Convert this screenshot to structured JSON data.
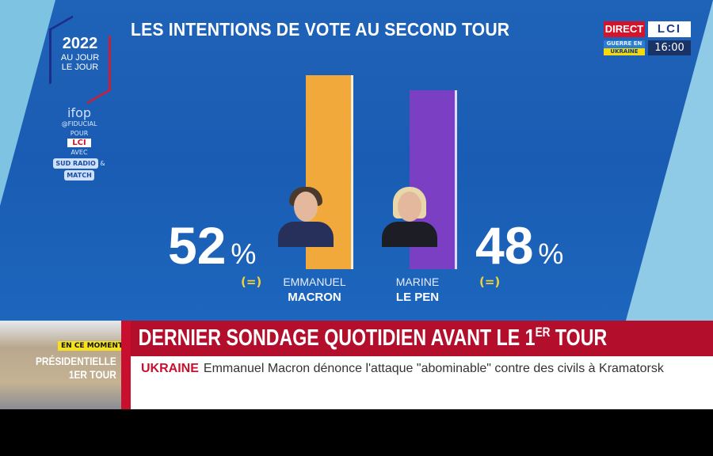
{
  "header": {
    "title": "LES INTENTIONS DE VOTE AU SECOND TOUR"
  },
  "logo": {
    "year": "2022",
    "line1": "AU JOUR",
    "line2": "LE JOUR"
  },
  "sponsors": {
    "ifop": "ifop",
    "fiducial": "@FIDUCIAL",
    "pour": "POUR",
    "lci": "LCI",
    "avec": "AVEC",
    "sud": "SUD RADIO",
    "match": "MATCH"
  },
  "live": {
    "direct": "DIRECT",
    "channel": "LCI",
    "tag_line1": "GUERRE EN",
    "tag_line2": "UKRAINE",
    "time": "16:00"
  },
  "chart_data": {
    "type": "bar",
    "title": "LES INTENTIONS DE VOTE AU SECOND TOUR",
    "categories": [
      "EMMANUEL MACRON",
      "MARINE LE PEN"
    ],
    "values": [
      52,
      48
    ],
    "unit": "%",
    "ylim": [
      0,
      52
    ],
    "candidates": [
      {
        "first": "EMMANUEL",
        "last": "MACRON",
        "value": 52,
        "pct_label": "52",
        "unit": "%",
        "change": "(=)",
        "color": "#f2a93b"
      },
      {
        "first": "MARINE",
        "last": "LE PEN",
        "value": 48,
        "pct_label": "48",
        "unit": "%",
        "change": "(=)",
        "color": "#7b3fc4"
      }
    ]
  },
  "lower_third": {
    "badge": "EN CE MOMENT",
    "program_line1": "PRÉSIDENTIELLE",
    "program_line2": "1ER TOUR",
    "headline_main": "DERNIER SONDAGE QUOTIDIEN AVANT LE 1",
    "headline_sup": "ER",
    "headline_end": " TOUR",
    "ticker_tag": "UKRAINE",
    "ticker_text": "Emmanuel Macron dénonce l'attaque \"abominable\" contre des civils à Kramatorsk"
  }
}
